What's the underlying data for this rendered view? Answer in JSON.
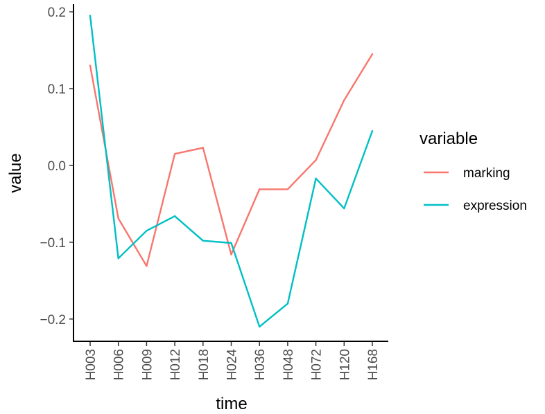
{
  "chart_data": {
    "type": "line",
    "xlabel": "time",
    "ylabel": "value",
    "categories": [
      "H003",
      "H006",
      "H009",
      "H012",
      "H018",
      "H024",
      "H036",
      "H048",
      "H072",
      "H120",
      "H168"
    ],
    "ylim": [
      -0.229,
      0.21
    ],
    "yticks": [
      0.2,
      0.1,
      0.0,
      -0.1,
      -0.2
    ],
    "ytick_labels": [
      "0.2",
      "0.1",
      "0.0",
      "−0.1",
      "−0.2"
    ],
    "legend_title": "variable",
    "legend_position": "right",
    "grid": false,
    "series": [
      {
        "name": "marking",
        "color": "#F8766D",
        "values": [
          0.13,
          -0.069,
          -0.131,
          0.015,
          0.023,
          -0.116,
          -0.031,
          -0.031,
          0.007,
          0.085,
          0.145
        ]
      },
      {
        "name": "expression",
        "color": "#00BFC4",
        "values": [
          0.195,
          -0.121,
          -0.085,
          -0.066,
          -0.098,
          -0.101,
          -0.21,
          -0.18,
          -0.017,
          -0.056,
          0.045
        ]
      }
    ]
  }
}
